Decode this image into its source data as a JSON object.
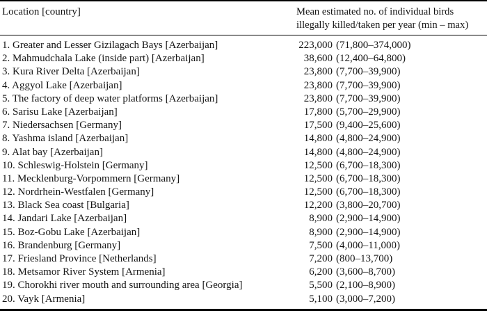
{
  "table": {
    "header": {
      "location_label": "Location [country]",
      "value_label_line1": "Mean estimated no. of individual birds",
      "value_label_line2": "illegally killed/taken per year (min – max)"
    },
    "rows": [
      {
        "location": "1. Greater and Lesser Gizilagach Bays [Azerbaijan]",
        "mean": "223,000",
        "range": "(71,800–374,000)"
      },
      {
        "location": "2. Mahmudchala Lake (inside part) [Azerbaijan]",
        "mean": "38,600",
        "range": "(12,400–64,800)"
      },
      {
        "location": "3. Kura River Delta [Azerbaijan]",
        "mean": "23,800",
        "range": "(7,700–39,900)"
      },
      {
        "location": "4. Aggyol Lake [Azerbaijan]",
        "mean": "23,800",
        "range": "(7,700–39,900)"
      },
      {
        "location": "5. The factory of deep water platforms [Azerbaijan]",
        "mean": "23,800",
        "range": "(7,700–39,900)"
      },
      {
        "location": "6. Sarisu Lake [Azerbaijan]",
        "mean": "17,800",
        "range": "(5,700–29,900)"
      },
      {
        "location": "7. Niedersachsen [Germany]",
        "mean": "17,500",
        "range": "(9,400–25,600)"
      },
      {
        "location": "8. Yashma island [Azerbaijan]",
        "mean": "14,800",
        "range": "(4,800–24,900)"
      },
      {
        "location": "9. Alat bay [Azerbaijan]",
        "mean": "14,800",
        "range": "(4,800–24,900)"
      },
      {
        "location": "10. Schleswig-Holstein [Germany]",
        "mean": "12,500",
        "range": "(6,700–18,300)"
      },
      {
        "location": "11. Mecklenburg-Vorpommern [Germany]",
        "mean": "12,500",
        "range": "(6,700–18,300)"
      },
      {
        "location": "12. Nordrhein-Westfalen [Germany]",
        "mean": "12,500",
        "range": "(6,700–18,300)"
      },
      {
        "location": "13. Black Sea coast [Bulgaria]",
        "mean": "12,200",
        "range": "(3,800–20,700)"
      },
      {
        "location": "14. Jandari Lake [Azerbaijan]",
        "mean": "8,900",
        "range": "(2,900–14,900)"
      },
      {
        "location": "15. Boz-Gobu Lake [Azerbaijan]",
        "mean": "8,900",
        "range": "(2,900–14,900)"
      },
      {
        "location": "16. Brandenburg [Germany]",
        "mean": "7,500",
        "range": "(4,000–11,000)"
      },
      {
        "location": "17. Friesland Province [Netherlands]",
        "mean": "7,200",
        "range": "(800–13,700)"
      },
      {
        "location": "18. Metsamor River System [Armenia]",
        "mean": "6,200",
        "range": "(3,600–8,700)"
      },
      {
        "location": "19. Chorokhi river mouth and surrounding area [Georgia]",
        "mean": "5,500",
        "range": "(2,100–8,900)"
      },
      {
        "location": "20. Vayk [Armenia]",
        "mean": "5,100",
        "range": "(3,000–7,200)"
      }
    ]
  }
}
